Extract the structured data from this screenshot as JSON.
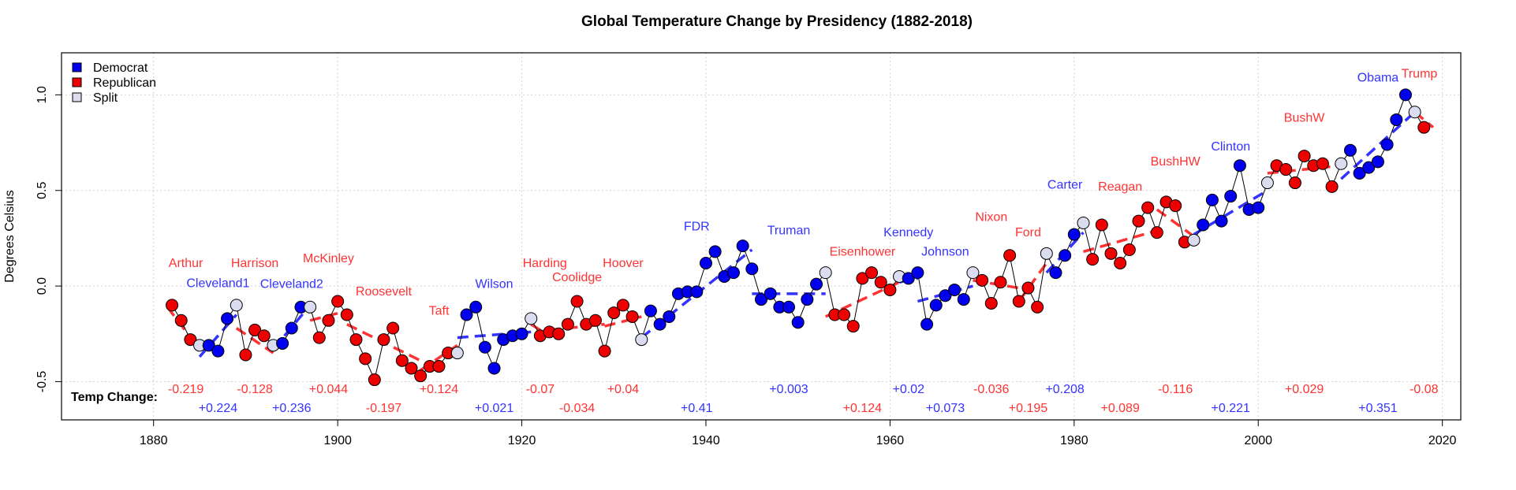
{
  "chart_data": {
    "type": "scatter",
    "title": "Global Temperature Change by Presidency (1882-2018)",
    "ylabel": "Degrees Celsius",
    "xlabel": "",
    "xlim": [
      1870,
      2022
    ],
    "ylim": [
      -0.7,
      1.22
    ],
    "x_ticks": [
      1880,
      1900,
      1920,
      1940,
      1960,
      1980,
      2000,
      2020
    ],
    "y_ticks": [
      -0.5,
      0.0,
      0.5,
      1.0
    ],
    "y_tick_labels": [
      "-0.5",
      "0.0",
      "0.5",
      "1.0"
    ],
    "grid": true,
    "legend_position": "top-left",
    "colors": {
      "Democrat": "#0000ee",
      "Republican": "#ee0000",
      "Split": "#dcdcf0",
      "Democrat_text": "#3333ff",
      "Republican_text": "#ff3333",
      "connector": "#000000"
    },
    "legend": [
      {
        "label": "Democrat",
        "party": "Democrat"
      },
      {
        "label": "Republican",
        "party": "Republican"
      },
      {
        "label": "Split",
        "party": "Split"
      }
    ],
    "change_heading": "Temp Change:",
    "points": [
      {
        "year": 1882,
        "value": -0.1,
        "party": "R"
      },
      {
        "year": 1883,
        "value": -0.18,
        "party": "R"
      },
      {
        "year": 1884,
        "value": -0.28,
        "party": "R"
      },
      {
        "year": 1885,
        "value": -0.31,
        "party": "S"
      },
      {
        "year": 1886,
        "value": -0.31,
        "party": "D"
      },
      {
        "year": 1887,
        "value": -0.34,
        "party": "D"
      },
      {
        "year": 1888,
        "value": -0.17,
        "party": "D"
      },
      {
        "year": 1889,
        "value": -0.1,
        "party": "S"
      },
      {
        "year": 1890,
        "value": -0.36,
        "party": "R"
      },
      {
        "year": 1891,
        "value": -0.23,
        "party": "R"
      },
      {
        "year": 1892,
        "value": -0.26,
        "party": "R"
      },
      {
        "year": 1893,
        "value": -0.31,
        "party": "S"
      },
      {
        "year": 1894,
        "value": -0.3,
        "party": "D"
      },
      {
        "year": 1895,
        "value": -0.22,
        "party": "D"
      },
      {
        "year": 1896,
        "value": -0.11,
        "party": "D"
      },
      {
        "year": 1897,
        "value": -0.11,
        "party": "S"
      },
      {
        "year": 1898,
        "value": -0.27,
        "party": "R"
      },
      {
        "year": 1899,
        "value": -0.18,
        "party": "R"
      },
      {
        "year": 1900,
        "value": -0.08,
        "party": "R"
      },
      {
        "year": 1901,
        "value": -0.15,
        "party": "R"
      },
      {
        "year": 1902,
        "value": -0.28,
        "party": "R"
      },
      {
        "year": 1903,
        "value": -0.38,
        "party": "R"
      },
      {
        "year": 1904,
        "value": -0.49,
        "party": "R"
      },
      {
        "year": 1905,
        "value": -0.28,
        "party": "R"
      },
      {
        "year": 1906,
        "value": -0.22,
        "party": "R"
      },
      {
        "year": 1907,
        "value": -0.39,
        "party": "R"
      },
      {
        "year": 1908,
        "value": -0.43,
        "party": "R"
      },
      {
        "year": 1909,
        "value": -0.47,
        "party": "R"
      },
      {
        "year": 1910,
        "value": -0.42,
        "party": "R"
      },
      {
        "year": 1911,
        "value": -0.42,
        "party": "R"
      },
      {
        "year": 1912,
        "value": -0.35,
        "party": "R"
      },
      {
        "year": 1913,
        "value": -0.35,
        "party": "S"
      },
      {
        "year": 1914,
        "value": -0.15,
        "party": "D"
      },
      {
        "year": 1915,
        "value": -0.11,
        "party": "D"
      },
      {
        "year": 1916,
        "value": -0.32,
        "party": "D"
      },
      {
        "year": 1917,
        "value": -0.43,
        "party": "D"
      },
      {
        "year": 1918,
        "value": -0.28,
        "party": "D"
      },
      {
        "year": 1919,
        "value": -0.26,
        "party": "D"
      },
      {
        "year": 1920,
        "value": -0.25,
        "party": "D"
      },
      {
        "year": 1921,
        "value": -0.17,
        "party": "S"
      },
      {
        "year": 1922,
        "value": -0.26,
        "party": "R"
      },
      {
        "year": 1923,
        "value": -0.24,
        "party": "R"
      },
      {
        "year": 1924,
        "value": -0.25,
        "party": "R"
      },
      {
        "year": 1925,
        "value": -0.2,
        "party": "R"
      },
      {
        "year": 1926,
        "value": -0.08,
        "party": "R"
      },
      {
        "year": 1927,
        "value": -0.2,
        "party": "R"
      },
      {
        "year": 1928,
        "value": -0.18,
        "party": "R"
      },
      {
        "year": 1929,
        "value": -0.34,
        "party": "R"
      },
      {
        "year": 1930,
        "value": -0.14,
        "party": "R"
      },
      {
        "year": 1931,
        "value": -0.1,
        "party": "R"
      },
      {
        "year": 1932,
        "value": -0.16,
        "party": "R"
      },
      {
        "year": 1933,
        "value": -0.28,
        "party": "S"
      },
      {
        "year": 1934,
        "value": -0.13,
        "party": "D"
      },
      {
        "year": 1935,
        "value": -0.2,
        "party": "D"
      },
      {
        "year": 1936,
        "value": -0.16,
        "party": "D"
      },
      {
        "year": 1937,
        "value": -0.04,
        "party": "D"
      },
      {
        "year": 1938,
        "value": -0.03,
        "party": "D"
      },
      {
        "year": 1939,
        "value": -0.03,
        "party": "D"
      },
      {
        "year": 1940,
        "value": 0.12,
        "party": "D"
      },
      {
        "year": 1941,
        "value": 0.18,
        "party": "D"
      },
      {
        "year": 1942,
        "value": 0.05,
        "party": "D"
      },
      {
        "year": 1943,
        "value": 0.07,
        "party": "D"
      },
      {
        "year": 1944,
        "value": 0.21,
        "party": "D"
      },
      {
        "year": 1945,
        "value": 0.09,
        "party": "D"
      },
      {
        "year": 1946,
        "value": -0.07,
        "party": "D"
      },
      {
        "year": 1947,
        "value": -0.04,
        "party": "D"
      },
      {
        "year": 1948,
        "value": -0.11,
        "party": "D"
      },
      {
        "year": 1949,
        "value": -0.11,
        "party": "D"
      },
      {
        "year": 1950,
        "value": -0.19,
        "party": "D"
      },
      {
        "year": 1951,
        "value": -0.07,
        "party": "D"
      },
      {
        "year": 1952,
        "value": 0.01,
        "party": "D"
      },
      {
        "year": 1953,
        "value": 0.07,
        "party": "S"
      },
      {
        "year": 1954,
        "value": -0.15,
        "party": "R"
      },
      {
        "year": 1955,
        "value": -0.15,
        "party": "R"
      },
      {
        "year": 1956,
        "value": -0.21,
        "party": "R"
      },
      {
        "year": 1957,
        "value": 0.04,
        "party": "R"
      },
      {
        "year": 1958,
        "value": 0.07,
        "party": "R"
      },
      {
        "year": 1959,
        "value": 0.02,
        "party": "R"
      },
      {
        "year": 1960,
        "value": -0.02,
        "party": "R"
      },
      {
        "year": 1961,
        "value": 0.05,
        "party": "S"
      },
      {
        "year": 1962,
        "value": 0.04,
        "party": "D"
      },
      {
        "year": 1963,
        "value": 0.07,
        "party": "D"
      },
      {
        "year": 1964,
        "value": -0.2,
        "party": "D"
      },
      {
        "year": 1965,
        "value": -0.1,
        "party": "D"
      },
      {
        "year": 1966,
        "value": -0.05,
        "party": "D"
      },
      {
        "year": 1967,
        "value": -0.02,
        "party": "D"
      },
      {
        "year": 1968,
        "value": -0.07,
        "party": "D"
      },
      {
        "year": 1969,
        "value": 0.07,
        "party": "S"
      },
      {
        "year": 1970,
        "value": 0.03,
        "party": "R"
      },
      {
        "year": 1971,
        "value": -0.09,
        "party": "R"
      },
      {
        "year": 1972,
        "value": 0.02,
        "party": "R"
      },
      {
        "year": 1973,
        "value": 0.16,
        "party": "R"
      },
      {
        "year": 1974,
        "value": -0.08,
        "party": "R"
      },
      {
        "year": 1975,
        "value": -0.01,
        "party": "R"
      },
      {
        "year": 1976,
        "value": -0.11,
        "party": "R"
      },
      {
        "year": 1977,
        "value": 0.17,
        "party": "S"
      },
      {
        "year": 1978,
        "value": 0.07,
        "party": "D"
      },
      {
        "year": 1979,
        "value": 0.16,
        "party": "D"
      },
      {
        "year": 1980,
        "value": 0.27,
        "party": "D"
      },
      {
        "year": 1981,
        "value": 0.33,
        "party": "S"
      },
      {
        "year": 1982,
        "value": 0.14,
        "party": "R"
      },
      {
        "year": 1983,
        "value": 0.32,
        "party": "R"
      },
      {
        "year": 1984,
        "value": 0.17,
        "party": "R"
      },
      {
        "year": 1985,
        "value": 0.12,
        "party": "R"
      },
      {
        "year": 1986,
        "value": 0.19,
        "party": "R"
      },
      {
        "year": 1987,
        "value": 0.34,
        "party": "R"
      },
      {
        "year": 1988,
        "value": 0.41,
        "party": "R"
      },
      {
        "year": 1989,
        "value": 0.28,
        "party": "R"
      },
      {
        "year": 1990,
        "value": 0.44,
        "party": "R"
      },
      {
        "year": 1991,
        "value": 0.42,
        "party": "R"
      },
      {
        "year": 1992,
        "value": 0.23,
        "party": "R"
      },
      {
        "year": 1993,
        "value": 0.24,
        "party": "S"
      },
      {
        "year": 1994,
        "value": 0.32,
        "party": "D"
      },
      {
        "year": 1995,
        "value": 0.45,
        "party": "D"
      },
      {
        "year": 1996,
        "value": 0.34,
        "party": "D"
      },
      {
        "year": 1997,
        "value": 0.47,
        "party": "D"
      },
      {
        "year": 1998,
        "value": 0.63,
        "party": "D"
      },
      {
        "year": 1999,
        "value": 0.4,
        "party": "D"
      },
      {
        "year": 2000,
        "value": 0.41,
        "party": "D"
      },
      {
        "year": 2001,
        "value": 0.54,
        "party": "S"
      },
      {
        "year": 2002,
        "value": 0.63,
        "party": "R"
      },
      {
        "year": 2003,
        "value": 0.61,
        "party": "R"
      },
      {
        "year": 2004,
        "value": 0.54,
        "party": "R"
      },
      {
        "year": 2005,
        "value": 0.68,
        "party": "R"
      },
      {
        "year": 2006,
        "value": 0.63,
        "party": "R"
      },
      {
        "year": 2007,
        "value": 0.64,
        "party": "R"
      },
      {
        "year": 2008,
        "value": 0.52,
        "party": "R"
      },
      {
        "year": 2009,
        "value": 0.64,
        "party": "S"
      },
      {
        "year": 2010,
        "value": 0.71,
        "party": "D"
      },
      {
        "year": 2011,
        "value": 0.59,
        "party": "D"
      },
      {
        "year": 2012,
        "value": 0.62,
        "party": "D"
      },
      {
        "year": 2013,
        "value": 0.65,
        "party": "D"
      },
      {
        "year": 2014,
        "value": 0.74,
        "party": "D"
      },
      {
        "year": 2015,
        "value": 0.87,
        "party": "D"
      },
      {
        "year": 2016,
        "value": 1.0,
        "party": "D"
      },
      {
        "year": 2017,
        "value": 0.91,
        "party": "S"
      },
      {
        "year": 2018,
        "value": 0.83,
        "party": "R"
      }
    ],
    "presidencies": [
      {
        "name": "Arthur",
        "party": "R",
        "label_x": 1883.5,
        "label_y": 0.1,
        "trend": [
          1881.5,
          -0.11,
          1885,
          -0.33
        ],
        "change": "-0.219",
        "change_x": 1883.5,
        "change_row": 1
      },
      {
        "name": "Cleveland1",
        "party": "D",
        "label_x": 1887,
        "label_y": -0.005,
        "trend": [
          1885,
          -0.37,
          1889,
          -0.15
        ],
        "change": "+0.224",
        "change_x": 1887,
        "change_row": 2
      },
      {
        "name": "Harrison",
        "party": "R",
        "label_x": 1891,
        "label_y": 0.1,
        "trend": [
          1889,
          -0.22,
          1893,
          -0.35
        ],
        "change": "-0.128",
        "change_x": 1891,
        "change_row": 1
      },
      {
        "name": "Cleveland2",
        "party": "D",
        "label_x": 1895,
        "label_y": -0.01,
        "trend": [
          1893,
          -0.33,
          1897,
          -0.1
        ],
        "change": "+0.236",
        "change_x": 1895,
        "change_row": 2
      },
      {
        "name": "McKinley",
        "party": "R",
        "label_x": 1899,
        "label_y": 0.125,
        "trend": [
          1897,
          -0.18,
          1901,
          -0.13
        ],
        "change": "+0.044",
        "change_x": 1899,
        "change_row": 1
      },
      {
        "name": "Roosevelt",
        "party": "R",
        "label_x": 1905,
        "label_y": -0.05,
        "trend": [
          1901,
          -0.2,
          1909,
          -0.39
        ],
        "change": "-0.197",
        "change_x": 1905,
        "change_row": 2
      },
      {
        "name": "Taft",
        "party": "R",
        "label_x": 1911,
        "label_y": -0.15,
        "trend": [
          1909,
          -0.44,
          1913,
          -0.31
        ],
        "change": "+0.124",
        "change_x": 1911,
        "change_row": 1
      },
      {
        "name": "Wilson",
        "party": "D",
        "label_x": 1917,
        "label_y": -0.01,
        "trend": [
          1913,
          -0.27,
          1921,
          -0.24
        ],
        "change": "+0.021",
        "change_x": 1917,
        "change_row": 2
      },
      {
        "name": "Harding",
        "party": "R",
        "label_x": 1922.5,
        "label_y": 0.1,
        "trend": [
          1921,
          -0.2,
          1923,
          -0.26
        ],
        "change": "-0.07",
        "change_x": 1922,
        "change_row": 1
      },
      {
        "name": "Coolidge",
        "party": "R",
        "label_x": 1926,
        "label_y": 0.025,
        "trend": [
          1923,
          -0.23,
          1929,
          -0.2
        ],
        "change": "-0.034",
        "change_x": 1926,
        "change_row": 2
      },
      {
        "name": "Hoover",
        "party": "R",
        "label_x": 1931,
        "label_y": 0.1,
        "trend": [
          1929,
          -0.21,
          1933,
          -0.16
        ],
        "change": "+0.04",
        "change_x": 1931,
        "change_row": 1
      },
      {
        "name": "FDR",
        "party": "D",
        "label_x": 1939,
        "label_y": 0.29,
        "trend": [
          1933,
          -0.27,
          1945,
          0.19
        ],
        "change": "+0.41",
        "change_x": 1939,
        "change_row": 2
      },
      {
        "name": "Truman",
        "party": "D",
        "label_x": 1949,
        "label_y": 0.27,
        "trend": [
          1945,
          -0.04,
          1953,
          -0.04
        ],
        "change": "+0.003",
        "change_x": 1949,
        "change_row": 1
      },
      {
        "name": "Eisenhower",
        "party": "R",
        "label_x": 1957,
        "label_y": 0.16,
        "trend": [
          1953,
          -0.16,
          1961,
          0.02
        ],
        "change": "+0.124",
        "change_x": 1957,
        "change_row": 2
      },
      {
        "name": "Kennedy",
        "party": "D",
        "label_x": 1962,
        "label_y": 0.26,
        "trend": [
          1961,
          0.02,
          1963,
          0.04
        ],
        "change": "+0.02",
        "change_x": 1962,
        "change_row": 1
      },
      {
        "name": "Johnson",
        "party": "D",
        "label_x": 1966,
        "label_y": 0.16,
        "trend": [
          1963,
          -0.08,
          1969,
          0.0
        ],
        "change": "+0.073",
        "change_x": 1966,
        "change_row": 2
      },
      {
        "name": "Nixon",
        "party": "R",
        "label_x": 1971,
        "label_y": 0.34,
        "trend": [
          1969,
          0.03,
          1974,
          -0.01
        ],
        "change": "-0.036",
        "change_x": 1971,
        "change_row": 1
      },
      {
        "name": "Ford",
        "party": "R",
        "label_x": 1975,
        "label_y": 0.26,
        "trend": [
          1974,
          -0.08,
          1977,
          0.12
        ],
        "change": "+0.195",
        "change_x": 1975,
        "change_row": 2
      },
      {
        "name": "Carter",
        "party": "D",
        "label_x": 1979,
        "label_y": 0.51,
        "trend": [
          1977,
          0.07,
          1981,
          0.28
        ],
        "change": "+0.208",
        "change_x": 1979,
        "change_row": 1
      },
      {
        "name": "Reagan",
        "party": "R",
        "label_x": 1985,
        "label_y": 0.5,
        "trend": [
          1981,
          0.18,
          1989,
          0.29
        ],
        "change": "+0.089",
        "change_x": 1985,
        "change_row": 2
      },
      {
        "name": "BushHW",
        "party": "R",
        "label_x": 1991,
        "label_y": 0.63,
        "trend": [
          1989,
          0.4,
          1993,
          0.26
        ],
        "change": "-0.116",
        "change_x": 1991,
        "change_row": 1
      },
      {
        "name": "Clinton",
        "party": "D",
        "label_x": 1997,
        "label_y": 0.71,
        "trend": [
          1993,
          0.27,
          2001,
          0.5
        ],
        "change": "+0.221",
        "change_x": 1997,
        "change_row": 2
      },
      {
        "name": "BushW",
        "party": "R",
        "label_x": 2005,
        "label_y": 0.86,
        "trend": [
          2001,
          0.59,
          2009,
          0.63
        ],
        "change": "+0.029",
        "change_x": 2005,
        "change_row": 1
      },
      {
        "name": "Obama",
        "party": "D",
        "label_x": 2013,
        "label_y": 1.07,
        "trend": [
          2009,
          0.56,
          2017,
          0.91
        ],
        "change": "+0.351",
        "change_x": 2013,
        "change_row": 2
      },
      {
        "name": "Trump",
        "party": "R",
        "label_x": 2017.5,
        "label_y": 1.09,
        "trend": [
          2017,
          0.91,
          2019,
          0.83
        ],
        "change": "-0.08",
        "change_x": 2018,
        "change_row": 1
      }
    ]
  }
}
